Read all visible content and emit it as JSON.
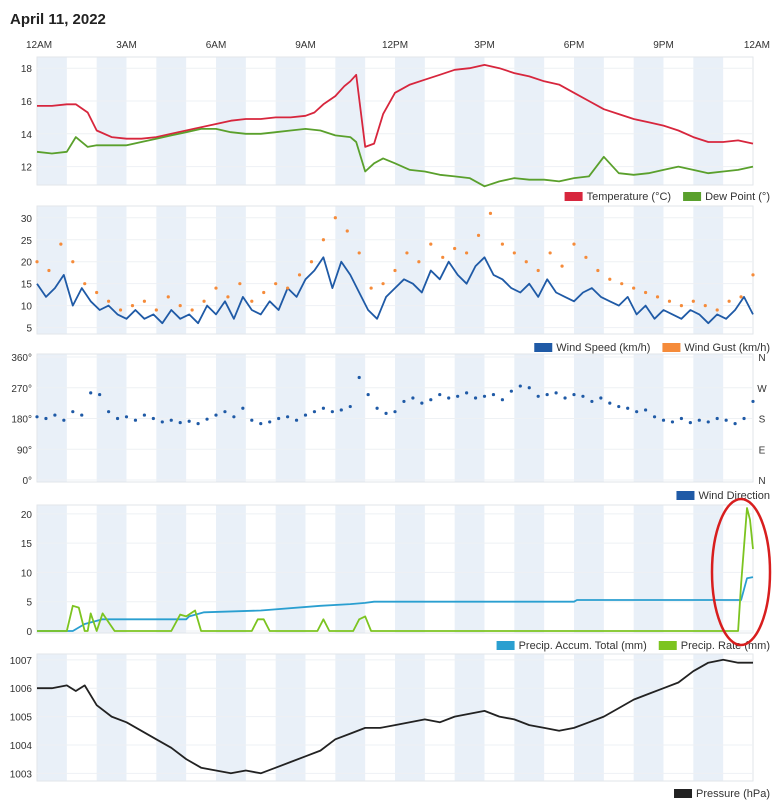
{
  "page": {
    "title": "April 11, 2022",
    "time_labels": [
      "12AM",
      "3AM",
      "6AM",
      "9AM",
      "12PM",
      "3PM",
      "6PM",
      "9PM",
      "12AM"
    ]
  },
  "colors": {
    "temperature": "#d7263d",
    "dew_point": "#5aa02c",
    "wind_speed": "#1f5aa6",
    "wind_gust": "#f58b3a",
    "wind_direction": "#1f5aa6",
    "precip_accum": "#2a9fd0",
    "precip_rate": "#7cc420",
    "pressure": "#222222",
    "band": "#e9f0f8",
    "annotation": "#d81e1e"
  },
  "chart_data": [
    {
      "id": "temp",
      "type": "line",
      "ylim": [
        11,
        18.5
      ],
      "ticks": [
        12,
        14,
        16,
        18
      ],
      "tick_labels": [
        "12",
        "14",
        "16",
        "18"
      ],
      "grid": true,
      "legend_position": "bottom-right",
      "series": [
        {
          "name": "Temperature (°C)",
          "color_key": "temperature",
          "legend": true,
          "x": [
            0,
            0.5,
            1,
            1.3,
            1.7,
            2,
            2.5,
            3,
            3.5,
            4,
            4.5,
            5,
            5.5,
            6,
            6.5,
            7,
            7.5,
            8,
            8.5,
            9,
            9.3,
            9.6,
            10,
            10.3,
            10.5,
            10.7,
            11,
            11.3,
            11.6,
            12,
            12.5,
            13,
            13.5,
            14,
            14.5,
            15,
            15.5,
            16,
            16.5,
            17,
            17.5,
            18,
            18.5,
            19,
            19.5,
            20,
            20.5,
            21,
            21.5,
            22,
            22.5,
            23,
            23.5,
            24
          ],
          "y": [
            15.7,
            15.7,
            15.8,
            15.8,
            15.3,
            14.2,
            13.8,
            13.7,
            13.7,
            13.8,
            14.0,
            14.2,
            14.4,
            14.6,
            14.8,
            14.9,
            14.9,
            15.0,
            15.0,
            15.1,
            15.3,
            15.8,
            16.3,
            16.9,
            17.2,
            17.6,
            13.2,
            13.4,
            15.2,
            16.5,
            17.0,
            17.3,
            17.6,
            17.9,
            18.0,
            18.2,
            18.0,
            17.7,
            17.5,
            17.2,
            17.0,
            16.5,
            16.0,
            15.5,
            15.2,
            14.9,
            14.7,
            14.5,
            14.2,
            13.8,
            13.5,
            13.5,
            13.6,
            13.4
          ]
        },
        {
          "name": "Dew Point (°)",
          "color_key": "dew_point",
          "legend": true,
          "x": [
            0,
            0.5,
            1,
            1.3,
            1.7,
            2,
            2.5,
            3,
            3.5,
            4,
            4.5,
            5,
            5.5,
            6,
            6.5,
            7,
            7.5,
            8,
            8.5,
            9,
            9.5,
            10,
            10.5,
            10.7,
            11,
            11.3,
            11.6,
            12,
            12.5,
            13,
            13.5,
            14,
            14.5,
            15,
            15.5,
            16,
            16.5,
            17,
            17.5,
            18,
            18.5,
            19,
            19.5,
            20,
            20.5,
            21,
            21.5,
            22,
            22.5,
            23,
            23.5,
            24
          ],
          "y": [
            12.9,
            12.8,
            12.9,
            13.8,
            13.2,
            13.3,
            13.3,
            13.3,
            13.5,
            13.7,
            13.9,
            14.1,
            14.3,
            14.3,
            14.1,
            14.0,
            14.0,
            14.1,
            14.2,
            14.3,
            14.2,
            13.9,
            13.8,
            13.5,
            11.7,
            12.2,
            12.5,
            12.2,
            11.8,
            11.7,
            11.5,
            11.4,
            11.3,
            10.8,
            11.1,
            11.3,
            11.2,
            11.2,
            11.1,
            11.3,
            11.4,
            12.6,
            11.6,
            11.5,
            11.6,
            11.8,
            12.0,
            11.8,
            11.6,
            11.7,
            11.8,
            12.0
          ]
        }
      ]
    },
    {
      "id": "wind",
      "type": "line",
      "ylim": [
        4,
        32
      ],
      "ticks": [
        5,
        10,
        15,
        20,
        25,
        30
      ],
      "tick_labels": [
        "5",
        "10",
        "15",
        "20",
        "25",
        "30"
      ],
      "grid": true,
      "legend_position": "bottom-right",
      "series": [
        {
          "name": "Wind Speed (km/h)",
          "color_key": "wind_speed",
          "legend": true,
          "x": [
            0,
            0.3,
            0.6,
            0.9,
            1.2,
            1.5,
            1.8,
            2.1,
            2.4,
            2.7,
            3,
            3.3,
            3.6,
            3.9,
            4.2,
            4.5,
            4.8,
            5.1,
            5.4,
            5.7,
            6,
            6.3,
            6.6,
            6.9,
            7.2,
            7.5,
            7.8,
            8.1,
            8.4,
            8.7,
            9,
            9.3,
            9.6,
            9.9,
            10.2,
            10.5,
            10.8,
            11.1,
            11.4,
            11.7,
            12,
            12.3,
            12.6,
            12.9,
            13.2,
            13.5,
            13.8,
            14.1,
            14.4,
            14.7,
            15,
            15.3,
            15.6,
            15.9,
            16.2,
            16.5,
            16.8,
            17.1,
            17.4,
            17.7,
            18,
            18.3,
            18.6,
            18.9,
            19.2,
            19.5,
            19.8,
            20.1,
            20.4,
            20.7,
            21,
            21.3,
            21.6,
            21.9,
            22.2,
            22.5,
            22.8,
            23.1,
            23.4,
            23.7,
            24
          ],
          "y": [
            15,
            12,
            14,
            17,
            10,
            14,
            11,
            9,
            10,
            8,
            7,
            9,
            7,
            8,
            6,
            9,
            7,
            8,
            6,
            10,
            8,
            11,
            7,
            12,
            9,
            8,
            11,
            9,
            14,
            12,
            16,
            18,
            21,
            14,
            20,
            17,
            13,
            9,
            7,
            12,
            14,
            16,
            15,
            13,
            18,
            16,
            20,
            17,
            15,
            19,
            21,
            17,
            16,
            14,
            13,
            15,
            12,
            16,
            13,
            12,
            11,
            13,
            14,
            12,
            11,
            10,
            12,
            8,
            10,
            7,
            9,
            8,
            7,
            9,
            8,
            6,
            8,
            7,
            9,
            12,
            8
          ]
        },
        {
          "name": "Wind Gust (km/h)",
          "color_key": "wind_gust",
          "legend": true,
          "style": "dots",
          "x": [
            0,
            0.4,
            0.8,
            1.2,
            1.6,
            2,
            2.4,
            2.8,
            3.2,
            3.6,
            4,
            4.4,
            4.8,
            5.2,
            5.6,
            6,
            6.4,
            6.8,
            7.2,
            7.6,
            8,
            8.4,
            8.8,
            9.2,
            9.6,
            10,
            10.4,
            10.8,
            11.2,
            11.6,
            12,
            12.4,
            12.8,
            13.2,
            13.6,
            14,
            14.4,
            14.8,
            15.2,
            15.6,
            16,
            16.4,
            16.8,
            17.2,
            17.6,
            18,
            18.4,
            18.8,
            19.2,
            19.6,
            20,
            20.4,
            20.8,
            21.2,
            21.6,
            22,
            22.4,
            22.8,
            23.2,
            23.6,
            24
          ],
          "y": [
            20,
            18,
            24,
            20,
            15,
            13,
            11,
            9,
            10,
            11,
            9,
            12,
            10,
            9,
            11,
            14,
            12,
            15,
            11,
            13,
            15,
            14,
            17,
            20,
            25,
            30,
            27,
            22,
            14,
            15,
            18,
            22,
            20,
            24,
            21,
            23,
            22,
            26,
            31,
            24,
            22,
            20,
            18,
            22,
            19,
            24,
            21,
            18,
            16,
            15,
            14,
            13,
            12,
            11,
            10,
            11,
            10,
            9,
            11,
            12,
            17
          ]
        }
      ]
    },
    {
      "id": "dir",
      "type": "scatter",
      "ylim": [
        0,
        360
      ],
      "ticks": [
        0,
        90,
        180,
        270,
        360
      ],
      "tick_labels": [
        "0°",
        "90°",
        "180°",
        "270°",
        "360°"
      ],
      "right_ticks": [
        0,
        90,
        180,
        270,
        360
      ],
      "right_tick_labels": [
        "N",
        "E",
        "S",
        "W",
        "N"
      ],
      "grid": true,
      "legend_position": "bottom-right",
      "series": [
        {
          "name": "Wind Direction",
          "color_key": "wind_direction",
          "legend": true,
          "style": "dots",
          "x": [
            0,
            0.3,
            0.6,
            0.9,
            1.2,
            1.5,
            1.8,
            2.1,
            2.4,
            2.7,
            3,
            3.3,
            3.6,
            3.9,
            4.2,
            4.5,
            4.8,
            5.1,
            5.4,
            5.7,
            6,
            6.3,
            6.6,
            6.9,
            7.2,
            7.5,
            7.8,
            8.1,
            8.4,
            8.7,
            9,
            9.3,
            9.6,
            9.9,
            10.2,
            10.5,
            10.8,
            11.1,
            11.4,
            11.7,
            12,
            12.3,
            12.6,
            12.9,
            13.2,
            13.5,
            13.8,
            14.1,
            14.4,
            14.7,
            15,
            15.3,
            15.6,
            15.9,
            16.2,
            16.5,
            16.8,
            17.1,
            17.4,
            17.7,
            18,
            18.3,
            18.6,
            18.9,
            19.2,
            19.5,
            19.8,
            20.1,
            20.4,
            20.7,
            21,
            21.3,
            21.6,
            21.9,
            22.2,
            22.5,
            22.8,
            23.1,
            23.4,
            23.7,
            24
          ],
          "y": [
            185,
            180,
            190,
            175,
            200,
            190,
            255,
            250,
            200,
            180,
            185,
            175,
            190,
            180,
            170,
            175,
            168,
            172,
            165,
            178,
            190,
            200,
            185,
            210,
            175,
            165,
            170,
            180,
            185,
            175,
            190,
            200,
            210,
            200,
            205,
            215,
            300,
            250,
            210,
            195,
            200,
            230,
            240,
            225,
            235,
            250,
            240,
            245,
            255,
            240,
            245,
            250,
            235,
            260,
            275,
            270,
            245,
            250,
            255,
            240,
            250,
            245,
            230,
            240,
            225,
            215,
            210,
            200,
            205,
            185,
            175,
            170,
            180,
            168,
            175,
            170,
            180,
            175,
            165,
            180,
            230
          ]
        }
      ]
    },
    {
      "id": "precip",
      "type": "line",
      "ylim": [
        0,
        21
      ],
      "ticks": [
        0,
        5,
        10,
        15,
        20
      ],
      "tick_labels": [
        "0",
        "5",
        "10",
        "15",
        "20"
      ],
      "grid": true,
      "legend_position": "bottom-right",
      "series": [
        {
          "name": "Precip. Accum. Total (mm)",
          "color_key": "precip_accum",
          "legend": true,
          "x": [
            0,
            1.2,
            1.6,
            2.2,
            5,
            5.1,
            5.6,
            7.5,
            9.5,
            10.5,
            11,
            11.3,
            11.5,
            18,
            18.1,
            23.6,
            23.8,
            24
          ],
          "y": [
            0,
            0,
            1.2,
            2,
            2,
            2.5,
            3.2,
            3.5,
            4.3,
            4.6,
            4.8,
            5,
            5,
            5,
            5.3,
            5.3,
            9,
            9.2
          ]
        },
        {
          "name": "Precip. Rate (mm)",
          "color_key": "precip_rate",
          "legend": true,
          "x": [
            0,
            1.0,
            1.2,
            1.4,
            1.6,
            1.7,
            1.8,
            2.0,
            2.2,
            2.4,
            2.6,
            4.5,
            4.8,
            5.0,
            5.3,
            5.5,
            5.7,
            7.2,
            7.4,
            7.6,
            7.8,
            9.4,
            9.6,
            9.8,
            10.6,
            10.8,
            11.0,
            11.2,
            23.5,
            23.6,
            23.8,
            23.9,
            24
          ],
          "y": [
            0,
            0,
            4.3,
            4.0,
            0,
            0,
            3.0,
            0,
            3.0,
            1.5,
            0,
            0,
            2.8,
            2.5,
            3.5,
            0,
            0,
            0,
            2.0,
            2.0,
            0,
            0,
            2.0,
            0,
            0,
            2.0,
            2.5,
            0,
            0,
            8,
            21,
            19,
            14
          ]
        }
      ]
    },
    {
      "id": "pressure",
      "type": "line",
      "ylim": [
        1002.8,
        1007.1
      ],
      "ticks": [
        1003,
        1004,
        1005,
        1006,
        1007
      ],
      "tick_labels": [
        "1003",
        "1004",
        "1005",
        "1006",
        "1007"
      ],
      "grid": true,
      "legend_position": "bottom-right",
      "series": [
        {
          "name": "Pressure (hPa)",
          "color_key": "pressure",
          "legend": true,
          "x": [
            0,
            0.5,
            1,
            1.3,
            1.6,
            2,
            2.5,
            3,
            3.5,
            4,
            4.5,
            5,
            5.5,
            6,
            6.5,
            7,
            7.5,
            8,
            8.5,
            9,
            9.5,
            10,
            10.5,
            11,
            11.5,
            12,
            12.5,
            13,
            13.5,
            14,
            14.5,
            15,
            15.5,
            16,
            16.5,
            17,
            17.5,
            18,
            18.5,
            19,
            19.5,
            20,
            20.5,
            21,
            21.5,
            22,
            22.5,
            23,
            23.5,
            24
          ],
          "y": [
            1006.0,
            1006.0,
            1006.1,
            1005.9,
            1006.1,
            1005.4,
            1005.0,
            1004.8,
            1004.5,
            1004.2,
            1003.9,
            1003.5,
            1003.2,
            1003.1,
            1003.0,
            1003.1,
            1003.0,
            1003.2,
            1003.4,
            1003.6,
            1003.8,
            1004.2,
            1004.4,
            1004.6,
            1004.6,
            1004.7,
            1004.8,
            1004.9,
            1004.8,
            1005.0,
            1005.1,
            1005.2,
            1005.0,
            1004.9,
            1004.7,
            1004.6,
            1004.5,
            1004.6,
            1004.8,
            1005.0,
            1005.3,
            1005.6,
            1005.8,
            1006.0,
            1006.2,
            1006.6,
            1006.9,
            1007.0,
            1006.9,
            1006.9
          ]
        }
      ]
    }
  ]
}
